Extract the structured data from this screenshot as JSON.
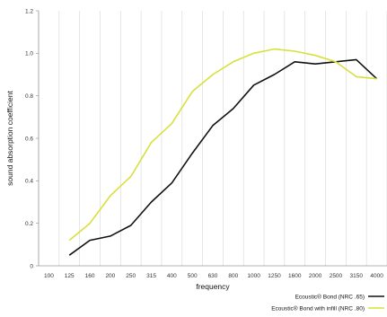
{
  "chart_data": {
    "type": "line",
    "xlabel": "frequency",
    "ylabel": "sound absorption coefficient",
    "categories": [
      "100",
      "125",
      "160",
      "200",
      "250",
      "315",
      "400",
      "500",
      "630",
      "800",
      "1000",
      "1250",
      "1600",
      "2000",
      "2500",
      "3150",
      "4000"
    ],
    "y_ticks": [
      "0",
      "0.2",
      "0.4",
      "0.6",
      "0.8",
      "1.0",
      "1.2"
    ],
    "ylim": [
      0,
      1.2
    ],
    "grid": "vertical lines at each category",
    "legend_position": "bottom-right",
    "series": [
      {
        "name": "Ecoustic® Bond (NRC .65)",
        "color": "#111111",
        "values": [
          null,
          0.05,
          0.12,
          0.14,
          0.19,
          0.3,
          0.39,
          0.53,
          0.66,
          0.74,
          0.85,
          0.9,
          0.96,
          0.95,
          0.96,
          0.97,
          0.88
        ]
      },
      {
        "name": "Ecoustic® Bond with infill (NRC .80)",
        "color": "#d8e03b",
        "values": [
          null,
          0.12,
          0.2,
          0.33,
          0.42,
          0.58,
          0.67,
          0.82,
          0.9,
          0.96,
          1.0,
          1.02,
          1.01,
          0.99,
          0.96,
          0.89,
          0.88
        ]
      }
    ]
  }
}
